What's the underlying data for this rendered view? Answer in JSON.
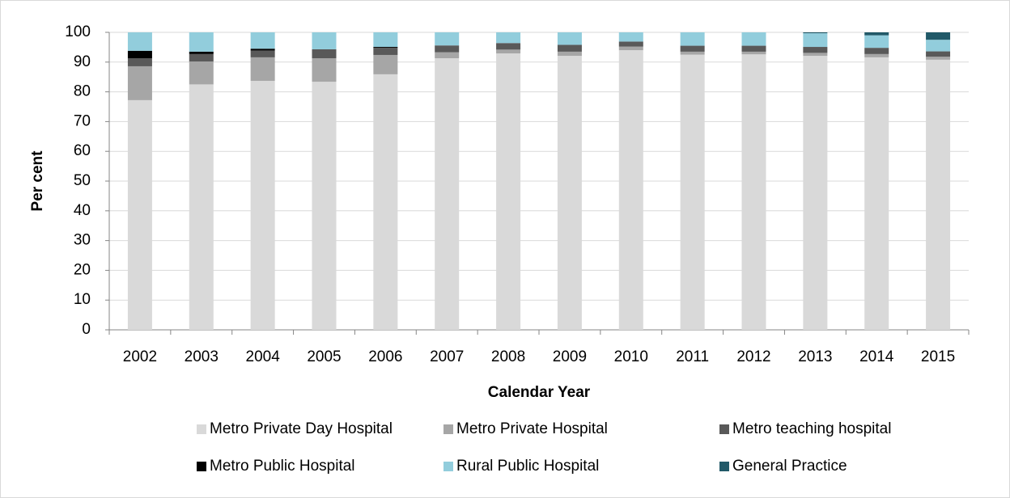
{
  "chart_data": {
    "type": "stacked_bar",
    "x_label": "Calendar Year",
    "y_label": "Per cent",
    "categories": [
      "2002",
      "2003",
      "2004",
      "2005",
      "2006",
      "2007",
      "2008",
      "2009",
      "2010",
      "2011",
      "2012",
      "2013",
      "2014",
      "2015"
    ],
    "series": [
      {
        "name": "Metro Private Day Hospital",
        "color": "#d9d9d9",
        "values": [
          77.2,
          82.5,
          83.7,
          83.4,
          85.9,
          91.3,
          92.9,
          92.1,
          94.0,
          92.5,
          92.6,
          92.1,
          91.6,
          90.8
        ]
      },
      {
        "name": "Metro Private Hospital",
        "color": "#a6a6a6",
        "values": [
          11.4,
          7.7,
          7.9,
          7.9,
          6.5,
          2.0,
          1.3,
          1.4,
          1.2,
          1.0,
          0.9,
          1.0,
          1.1,
          1.0
        ]
      },
      {
        "name": "Metro teaching hospital",
        "color": "#595959",
        "values": [
          2.7,
          2.5,
          2.3,
          3.0,
          2.4,
          2.3,
          2.2,
          2.3,
          1.7,
          2.0,
          2.0,
          2.0,
          2.1,
          1.8
        ]
      },
      {
        "name": "Metro Public Hospital",
        "color": "#000000",
        "values": [
          2.5,
          0.8,
          0.6,
          0,
          0.3,
          0,
          0,
          0,
          0,
          0,
          0,
          0,
          0,
          0
        ]
      },
      {
        "name": "Rural Public Hospital",
        "color": "#92cddc",
        "values": [
          6.2,
          6.5,
          5.5,
          5.7,
          4.9,
          4.4,
          3.6,
          4.2,
          3.1,
          4.5,
          4.5,
          4.6,
          4.2,
          3.9
        ]
      },
      {
        "name": "General Practice",
        "color": "#215968",
        "values": [
          0,
          0,
          0,
          0,
          0,
          0,
          0,
          0,
          0,
          0,
          0,
          0.3,
          1.0,
          2.5
        ]
      }
    ],
    "ylim": [
      0,
      100
    ],
    "yticks": [
      0,
      10,
      20,
      30,
      40,
      50,
      60,
      70,
      80,
      90,
      100
    ],
    "grid": true,
    "legend": "bottom"
  }
}
